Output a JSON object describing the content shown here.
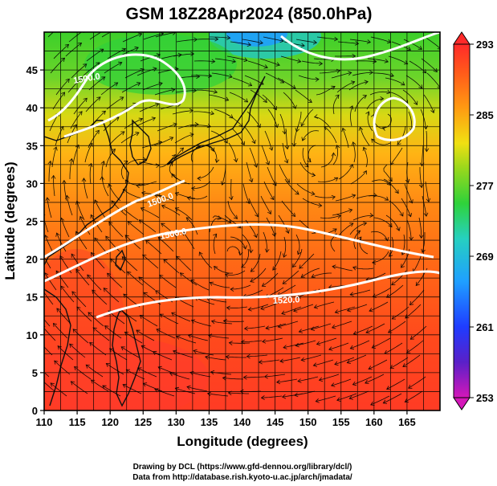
{
  "title": "GSM 18Z28Apr2024 (850.0hPa)",
  "xlabel": "Longitude (degrees)",
  "ylabel": "Latitude  (degrees)",
  "credits": [
    "Drawing by DCL (https://www.gfd-dennou.org/library/dcl/)",
    "Data from http://database.rish.kyoto-u.ac.jp/arch/jmadata/"
  ],
  "map": {
    "lon_range": [
      110,
      170
    ],
    "lat_range": [
      0,
      50
    ],
    "lon_ticks": [
      "110",
      "115",
      "120",
      "125",
      "130",
      "135",
      "140",
      "145",
      "150",
      "155",
      "160",
      "165"
    ],
    "lat_ticks": [
      "0",
      "5",
      "10",
      "15",
      "20",
      "25",
      "30",
      "35",
      "40",
      "45"
    ],
    "contour_labels": [
      "1500.0",
      "1500.0",
      "1500.0",
      "1520.0"
    ],
    "colors": {
      "warm": "#ff3b1a",
      "orange": "#ff8a1a",
      "yellow": "#e8d80e",
      "green": "#3cd02a",
      "cyan": "#28c8b4",
      "blue": "#1f6cff",
      "contour": "#ffffff",
      "streamline": "#000000"
    }
  },
  "colorbar": {
    "ticks": [
      "293",
      "285",
      "277",
      "269",
      "261",
      "253"
    ],
    "range": [
      253,
      293
    ],
    "stops": [
      "#d417b9",
      "#5a20c8",
      "#1f3cff",
      "#1fa0ff",
      "#26d0c0",
      "#2fd23a",
      "#9ad81c",
      "#f0e012",
      "#ff9a12",
      "#ff5a1a",
      "#ff2a2a"
    ]
  }
}
